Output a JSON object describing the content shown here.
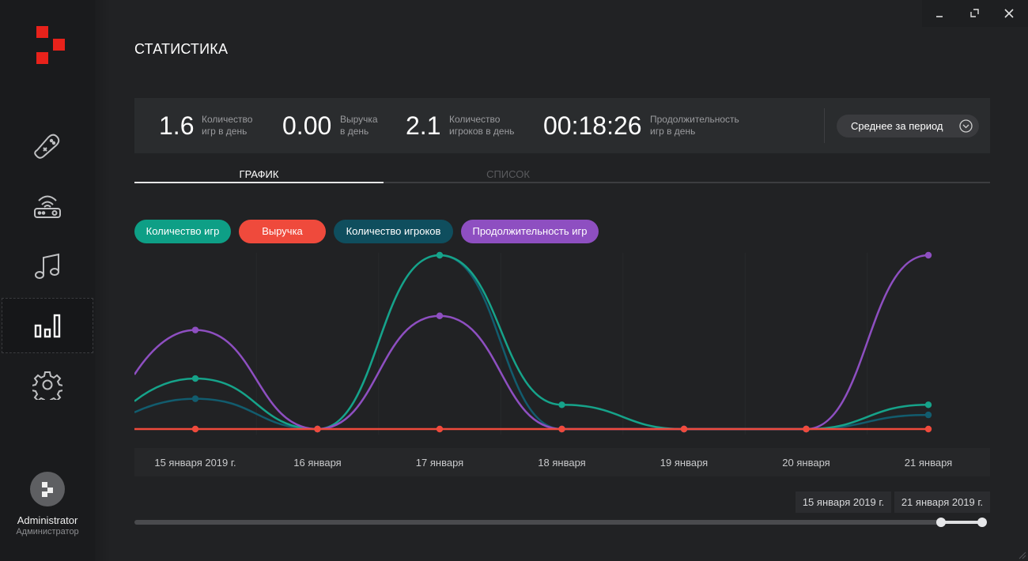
{
  "sidebar": {
    "nav": [
      {
        "icon": "gamepad-icon",
        "label": ""
      },
      {
        "icon": "router-icon",
        "label": ""
      },
      {
        "icon": "music-note-icon",
        "label": ""
      },
      {
        "icon": "bar-chart-icon",
        "label": "",
        "active": true
      },
      {
        "icon": "gear-icon",
        "label": ""
      }
    ],
    "user": {
      "name": "Administrator",
      "role": "Администратор"
    }
  },
  "window": {
    "controls": [
      "minimize-icon",
      "maximize-icon",
      "close-icon"
    ]
  },
  "page": {
    "title": "СТАТИСТИКА"
  },
  "stats": {
    "games_per_day": {
      "value": "1.6",
      "label_line1": "Количество",
      "label_line2": "игр в день"
    },
    "revenue_per_day": {
      "value": "0.00",
      "label_line1": "Выручка",
      "label_line2": "в день"
    },
    "players_per_day": {
      "value": "2.1",
      "label_line1": "Количество",
      "label_line2": "игроков в день"
    },
    "duration_per_day": {
      "value": "00:18:26",
      "label_line1": "Продолжительность",
      "label_line2": "игр в день"
    },
    "period_select": {
      "value": "Среднее за период"
    }
  },
  "tabs": [
    {
      "label": "ГРАФИК",
      "active": true
    },
    {
      "label": "СПИСОК",
      "active": false
    }
  ],
  "legend": [
    {
      "label": "Количество игр",
      "color": "#0e9f86"
    },
    {
      "label": "Выручка",
      "color": "#ef4a3c"
    },
    {
      "label": "Количество игроков",
      "color": "#0f4e5e"
    },
    {
      "label": "Продолжительность игр",
      "color": "#8e4fc1"
    }
  ],
  "chart_data": {
    "type": "line",
    "x": [
      "15 января 2019 г.",
      "16 января",
      "17 января",
      "18 января",
      "19 января",
      "20 января",
      "21 января"
    ],
    "series": [
      {
        "name": "Количество игр",
        "color": "#16a38a",
        "values": [
          2.5,
          0,
          8.6,
          1.2,
          0,
          0,
          1.2
        ]
      },
      {
        "name": "Выручка",
        "color": "#ef4a3c",
        "values": [
          0,
          0,
          0,
          0,
          0,
          0,
          0
        ]
      },
      {
        "name": "Количество игроков",
        "color": "#125c6e",
        "values": [
          1.5,
          0,
          8.6,
          0,
          0,
          0,
          0.7
        ]
      },
      {
        "name": "Продолжительность игр",
        "color": "#8e4fc1",
        "values": [
          4.9,
          0,
          5.6,
          0,
          0,
          0,
          8.6
        ]
      }
    ],
    "ylim": [
      0,
      8.6
    ],
    "grid": true,
    "smooth": true
  },
  "range": {
    "start": "15 января 2019 г.",
    "end": "21 января 2019 г."
  }
}
